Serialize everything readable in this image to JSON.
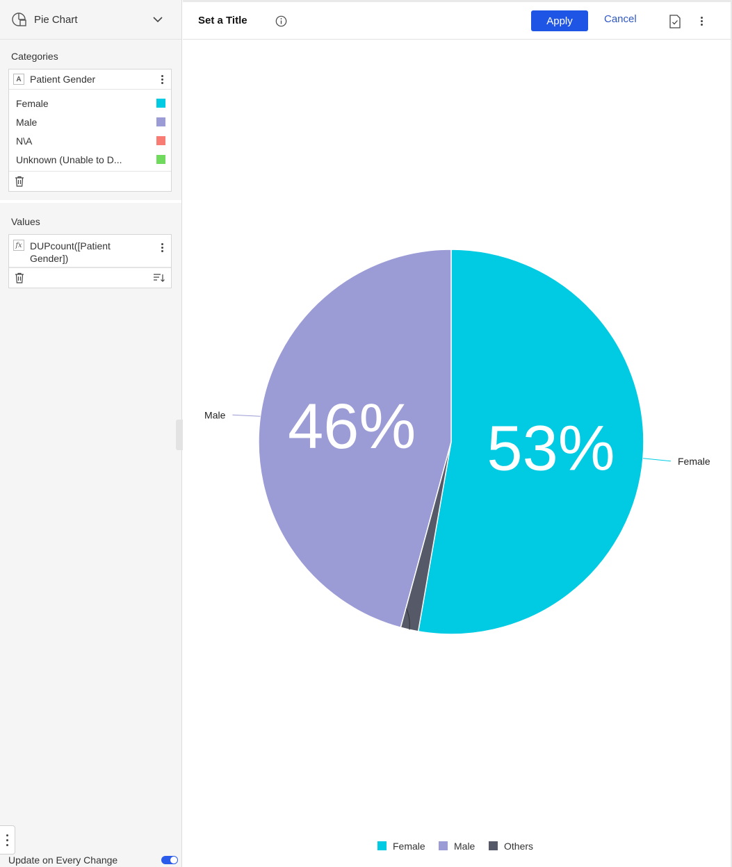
{
  "chart_type_selector": {
    "label": "Pie Chart",
    "icon": "pie-chart-icon"
  },
  "categories": {
    "title": "Categories",
    "field": {
      "type_badge": "A",
      "name": "Patient Gender"
    },
    "items": [
      {
        "label": "Female",
        "color": "#00cbe3"
      },
      {
        "label": "Male",
        "color": "#9b9bd6"
      },
      {
        "label": "N\\A",
        "color": "#f87c74"
      },
      {
        "label": "Unknown (Unable to D...",
        "color": "#6fda5e"
      }
    ]
  },
  "values": {
    "title": "Values",
    "field": {
      "type_badge": "fx",
      "name": "DUPcount([Patient Gender])"
    }
  },
  "update_toggle": {
    "label": "Update on Every Change",
    "on": true
  },
  "toolbar": {
    "title": "Set a Title",
    "apply_label": "Apply",
    "cancel_label": "Cancel"
  },
  "chart_data": {
    "type": "pie",
    "title": "",
    "slices": [
      {
        "label": "Female",
        "value": 53,
        "color": "#00cbe3",
        "data_label": "53%"
      },
      {
        "label": "Others",
        "value": 1.5,
        "color": "#565a68"
      },
      {
        "label": "Male",
        "value": 46,
        "color": "#9b9bd6",
        "data_label": "46%"
      }
    ],
    "legend": {
      "position": "bottom-center",
      "entries": [
        {
          "label": "Female",
          "color": "#00cbe3"
        },
        {
          "label": "Male",
          "color": "#9b9bd6"
        },
        {
          "label": "Others",
          "color": "#565a68"
        }
      ]
    }
  }
}
